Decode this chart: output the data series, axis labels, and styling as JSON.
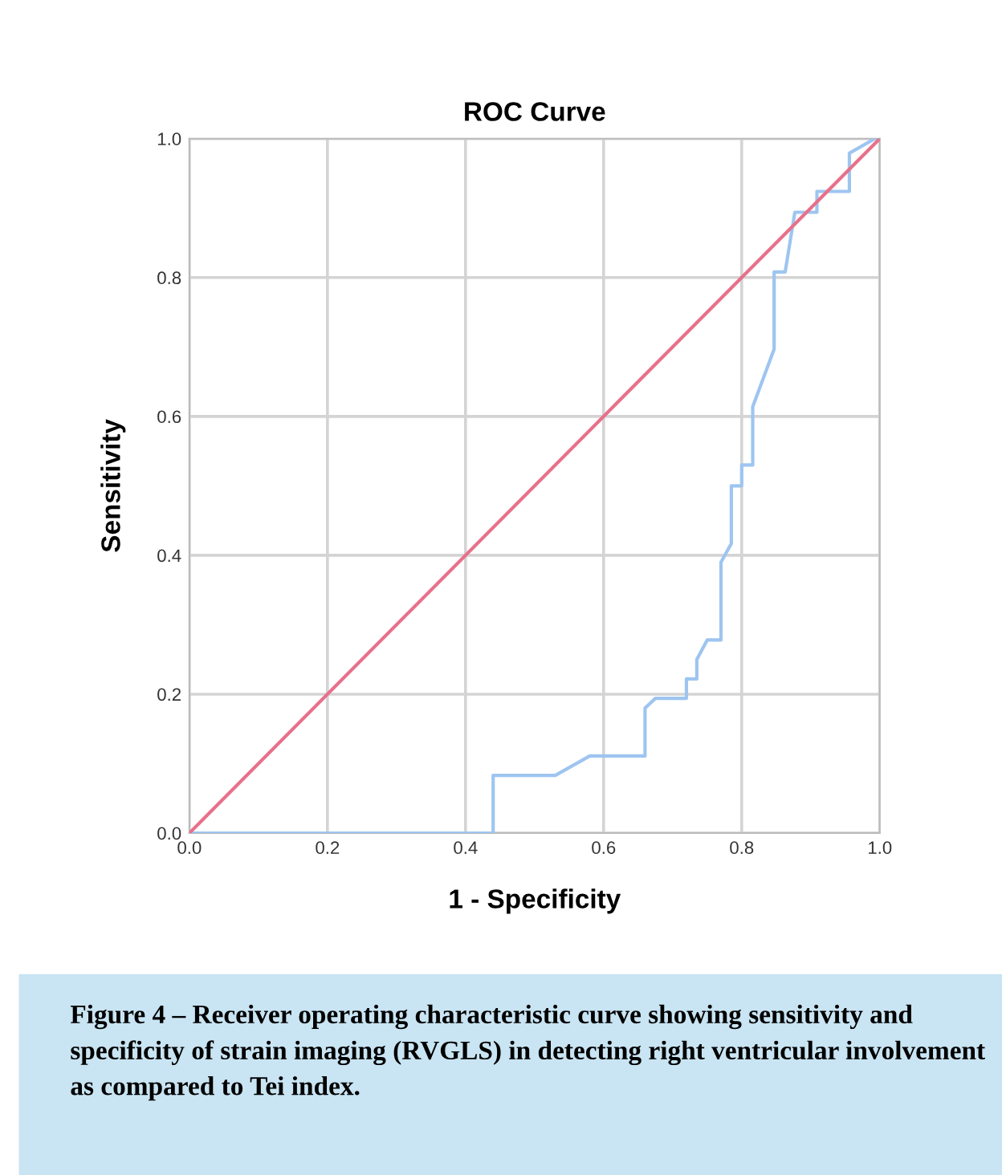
{
  "chart_data": {
    "type": "line",
    "title": "ROC Curve",
    "xlabel": "1 - Specificity",
    "ylabel": "Sensitivity",
    "xlim": [
      0,
      1
    ],
    "ylim": [
      0,
      1
    ],
    "xticks": [
      {
        "value": 0,
        "label": "0.0"
      },
      {
        "value": 0.2,
        "label": "0.2"
      },
      {
        "value": 0.4,
        "label": "0.4"
      },
      {
        "value": 0.6,
        "label": "0.6"
      },
      {
        "value": 0.8,
        "label": "0.8"
      },
      {
        "value": 1,
        "label": "1.0"
      }
    ],
    "yticks": [
      {
        "value": 0,
        "label": "0.0"
      },
      {
        "value": 0.2,
        "label": "0.2"
      },
      {
        "value": 0.4,
        "label": "0.4"
      },
      {
        "value": 0.6,
        "label": "0.6"
      },
      {
        "value": 0.8,
        "label": "0.8"
      },
      {
        "value": 1,
        "label": "1.0"
      }
    ],
    "grid": true,
    "marker": "none",
    "line_style": "solid",
    "series": [
      {
        "color": "#9ec5f0",
        "x": [
          0,
          0.44,
          0.44,
          0.53,
          0.58,
          0.66,
          0.66,
          0.675,
          0.72,
          0.72,
          0.735,
          0.735,
          0.75,
          0.77,
          0.77,
          0.785,
          0.785,
          0.8,
          0.8,
          0.816,
          0.816,
          0.847,
          0.847,
          0.863,
          0.877,
          0.909,
          0.909,
          0.956,
          0.956,
          0.993,
          1
        ],
        "values": [
          0,
          0,
          0.083,
          0.083,
          0.111,
          0.111,
          0.18,
          0.194,
          0.194,
          0.222,
          0.222,
          0.25,
          0.278,
          0.278,
          0.39,
          0.417,
          0.5,
          0.5,
          0.53,
          0.53,
          0.614,
          0.697,
          0.808,
          0.808,
          0.894,
          0.894,
          0.924,
          0.924,
          0.979,
          1,
          1
        ]
      },
      {
        "color": "#e8708a",
        "x": [
          0,
          1
        ],
        "values": [
          0,
          1
        ]
      }
    ],
    "annotations": [
      "Figure 4 – Receiver operating characteristic curve showing sensitivity and specificity of strain imaging (RVGLS) in detecting right ventricular involvement as compared to Tei index."
    ]
  }
}
